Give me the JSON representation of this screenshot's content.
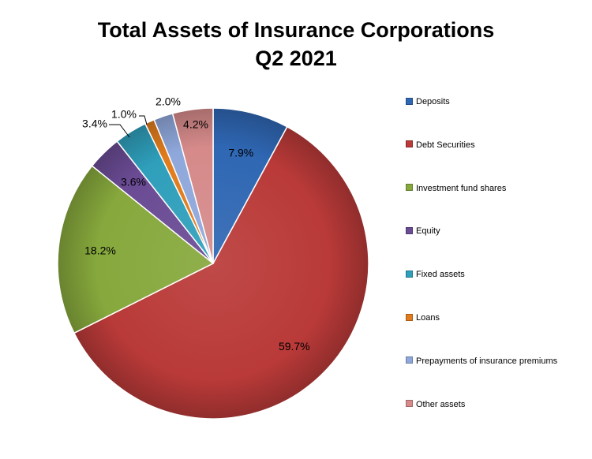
{
  "chart_data": {
    "type": "pie",
    "title": "Total Assets of Insurance Corporations",
    "subtitle": "Q2 2021",
    "legend_position": "right",
    "slices": [
      {
        "label": "Deposits",
        "value": 7.9,
        "value_label": "7.9%",
        "color": "#2f67b3"
      },
      {
        "label": "Debt Securities",
        "value": 59.7,
        "value_label": "59.7%",
        "color": "#b93a38"
      },
      {
        "label": "Investment fund shares",
        "value": 18.2,
        "value_label": "18.2%",
        "color": "#86a83c"
      },
      {
        "label": "Equity",
        "value": 3.6,
        "value_label": "3.6%",
        "color": "#6a4b94"
      },
      {
        "label": "Fixed assets",
        "value": 3.4,
        "value_label": "3.4%",
        "color": "#2f9fbb"
      },
      {
        "label": "Loans",
        "value": 1.0,
        "value_label": "1.0%",
        "color": "#e07c1d"
      },
      {
        "label": "Prepayments of insurance premiums",
        "value": 2.0,
        "value_label": "2.0%",
        "color": "#8fa8db"
      },
      {
        "label": "Other assets",
        "value": 4.2,
        "value_label": "4.2%",
        "color": "#d68a8a"
      }
    ]
  }
}
